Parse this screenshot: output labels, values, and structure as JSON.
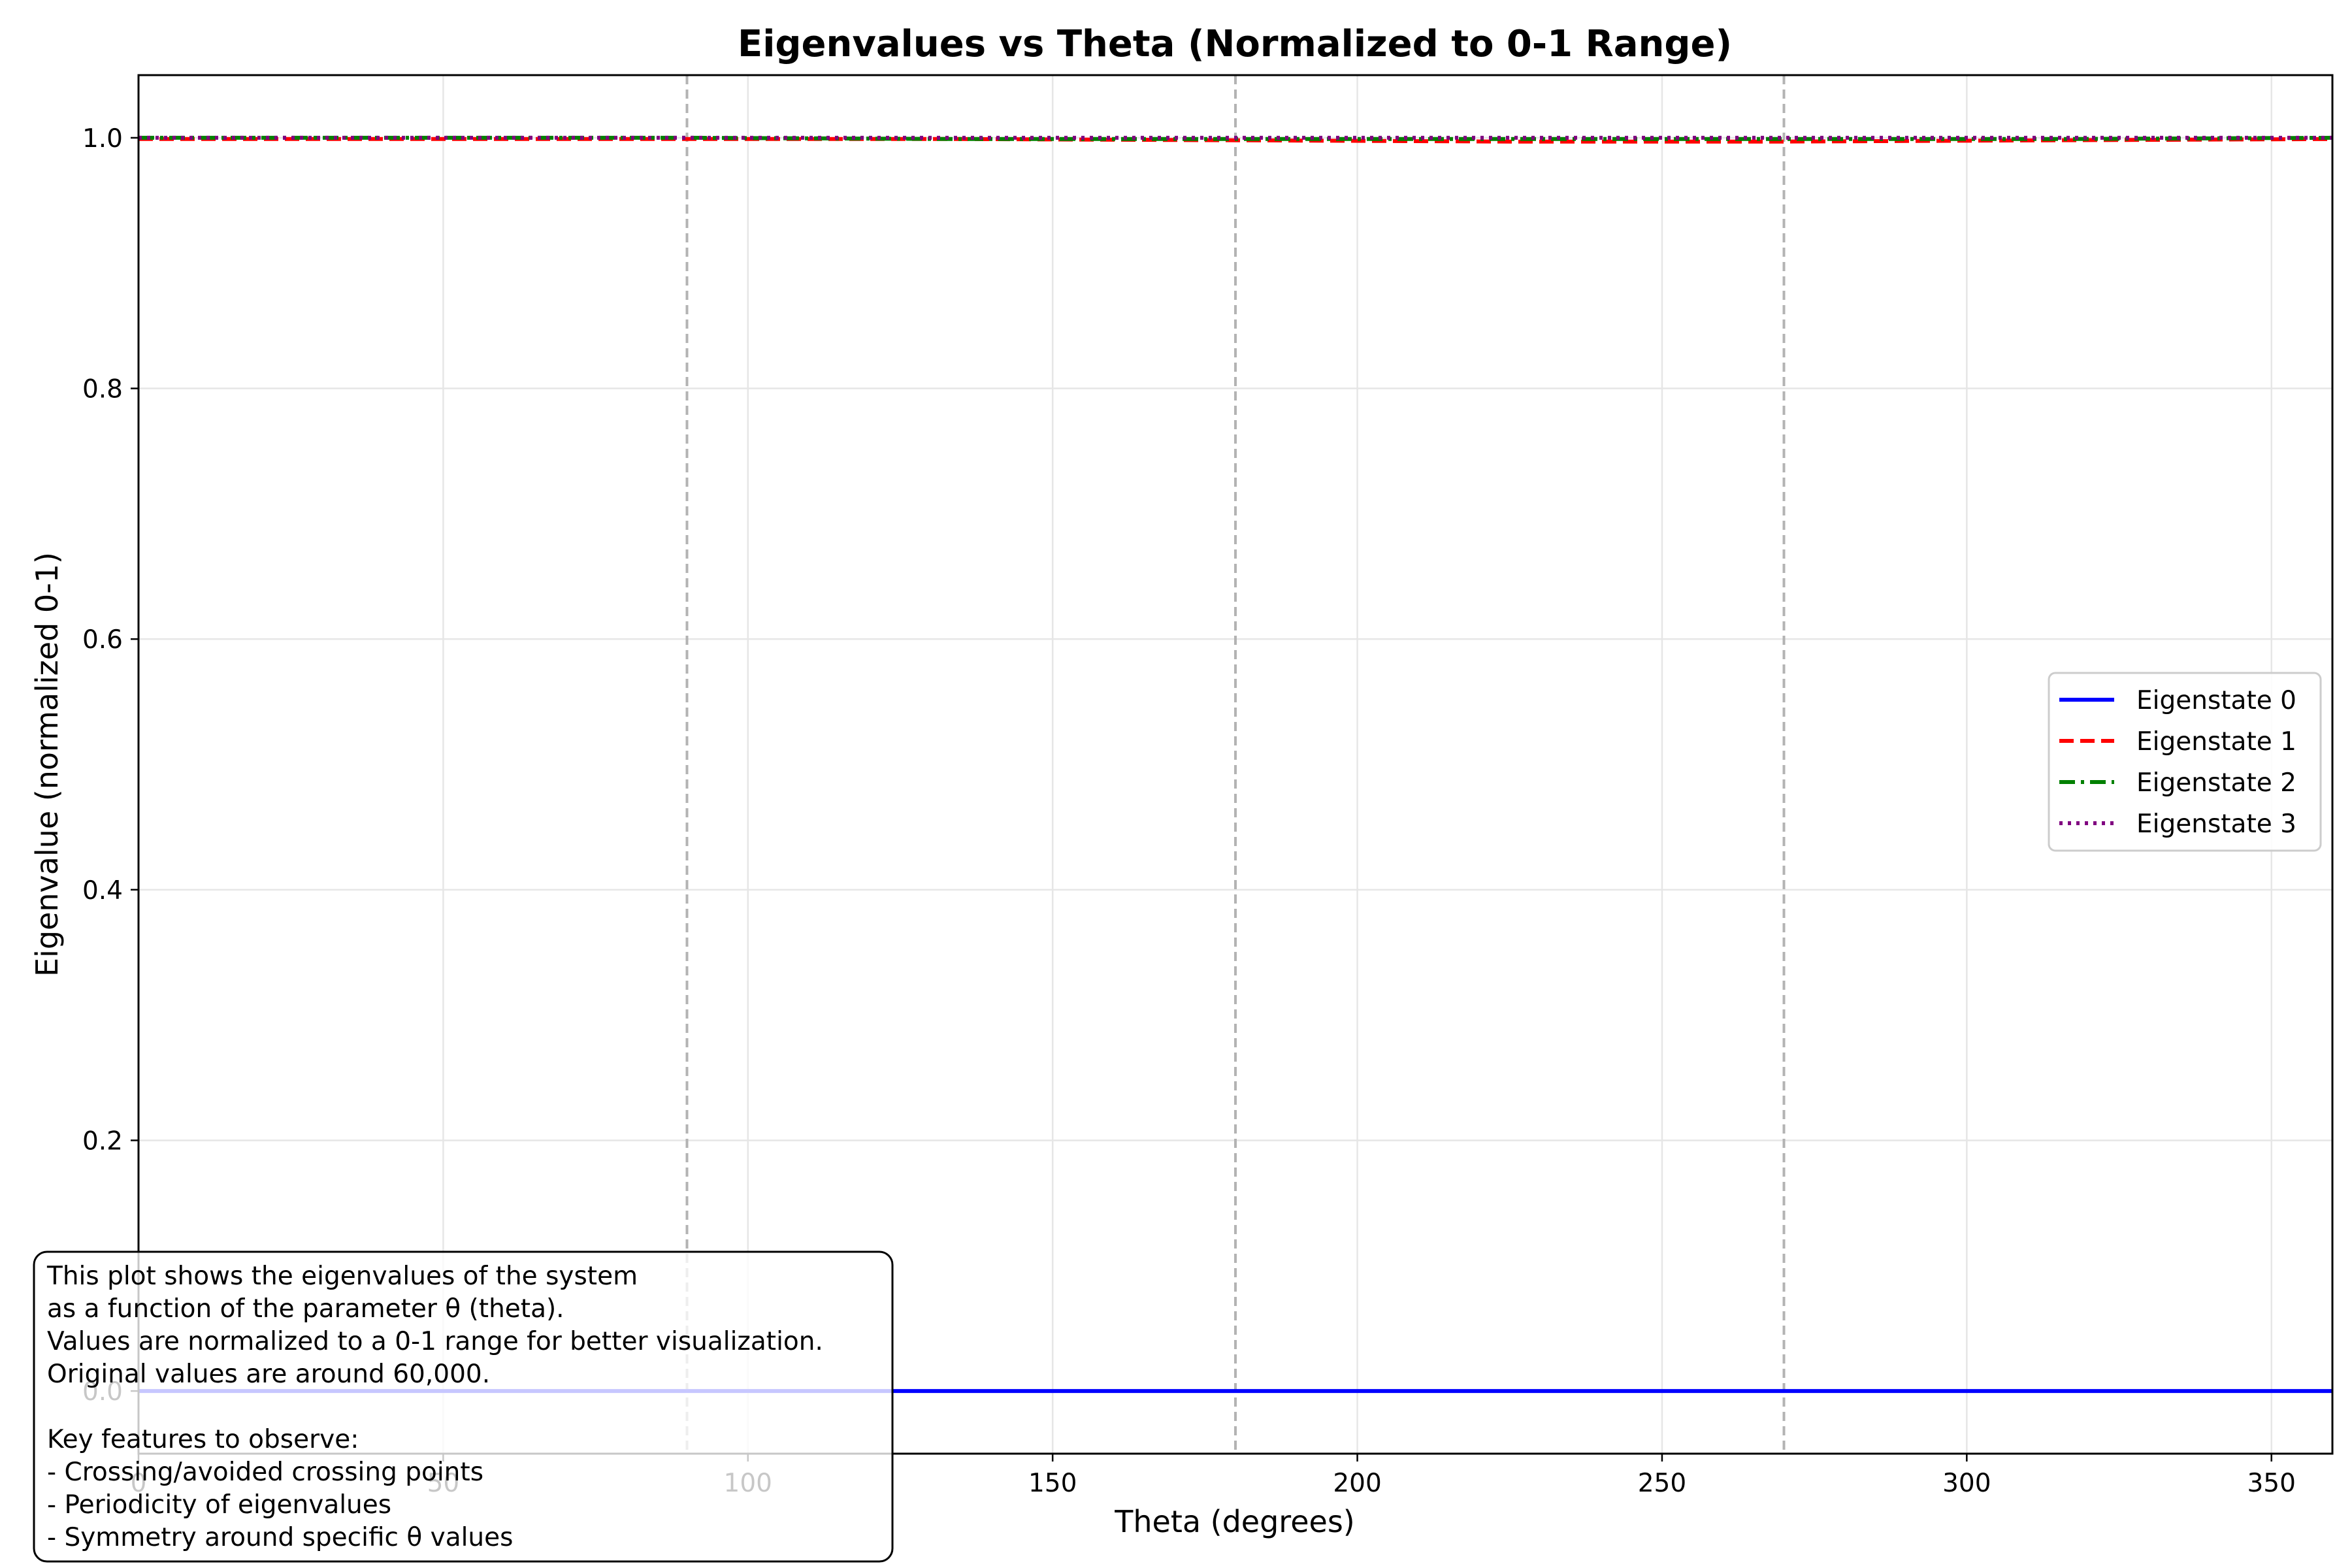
{
  "chart_data": {
    "type": "line",
    "title": "Eigenvalues vs Theta (Normalized to 0-1 Range)",
    "xlabel": "Theta (degrees)",
    "ylabel": "Eigenvalue (normalized 0-1)",
    "xlim": [
      0,
      360
    ],
    "ylim": [
      -0.05,
      1.05
    ],
    "x_ticks": [
      0,
      50,
      100,
      150,
      200,
      250,
      300,
      350
    ],
    "x_tick_labels": [
      "0",
      "50",
      "100",
      "150",
      "200",
      "250",
      "300",
      "350"
    ],
    "y_ticks": [
      0.0,
      0.2,
      0.4,
      0.6,
      0.8,
      1.0
    ],
    "y_tick_labels": [
      "0.0",
      "0.2",
      "0.4",
      "0.6",
      "0.8",
      "1.0"
    ],
    "grid": true,
    "legend_position": "center-right",
    "vertical_reference_lines": [
      90,
      180,
      270
    ],
    "x": [
      0,
      45,
      90,
      135,
      180,
      225,
      270,
      315,
      360
    ],
    "series": [
      {
        "name": "Eigenstate 0",
        "color": "#0000ff",
        "style": "solid",
        "values": [
          0.0,
          0.0,
          0.0,
          0.0,
          0.0,
          0.0,
          0.0,
          0.0,
          0.0
        ]
      },
      {
        "name": "Eigenstate 1",
        "color": "#ff0000",
        "style": "dashed",
        "values": [
          0.999,
          0.999,
          0.999,
          0.999,
          0.998,
          0.997,
          0.997,
          0.998,
          0.999
        ]
      },
      {
        "name": "Eigenstate 2",
        "color": "#008000",
        "style": "dashdot",
        "values": [
          1.0,
          1.0,
          1.0,
          0.999,
          0.999,
          0.999,
          0.999,
          0.999,
          1.0
        ]
      },
      {
        "name": "Eigenstate 3",
        "color": "#800080",
        "style": "dotted",
        "values": [
          1.0,
          1.0,
          1.0,
          1.0,
          1.0,
          1.0,
          1.0,
          1.0,
          1.0
        ]
      }
    ],
    "annotation": {
      "lines": [
        "This plot shows the eigenvalues of the system",
        "as a function of the parameter θ (theta).",
        "Values are normalized to a 0-1 range for better visualization.",
        "Original values are around 60,000.",
        "",
        "Key features to observe:",
        "- Crossing/avoided crossing points",
        "- Periodicity of eigenvalues",
        "- Symmetry around specific θ values"
      ]
    }
  }
}
